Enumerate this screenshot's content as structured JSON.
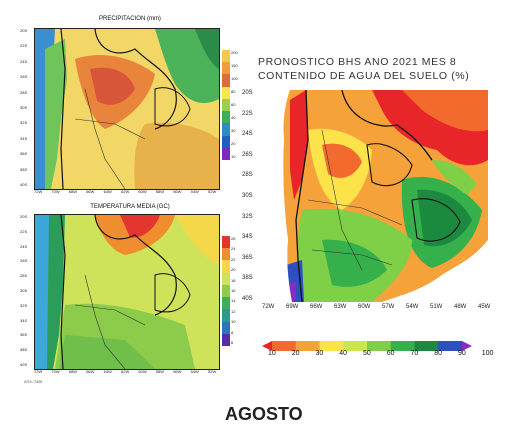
{
  "precip_map": {
    "title": "PRECIPITACION (mm)",
    "lat_ticks": [
      "20S",
      "22S",
      "24S",
      "26S",
      "28S",
      "30S",
      "32S",
      "34S",
      "36S",
      "38S",
      "40S"
    ],
    "lon_ticks": [
      "72W",
      "70W",
      "68W",
      "66W",
      "64W",
      "62W",
      "60W",
      "58W",
      "56W",
      "54W",
      "52W"
    ],
    "colorbar": [
      "200",
      "150",
      "100",
      "80",
      "60",
      "40",
      "30",
      "20",
      "10"
    ],
    "colors": [
      "#f2c94c",
      "#ee9d3a",
      "#e16a3c",
      "#f6e84a",
      "#9bd14a",
      "#3fae5a",
      "#2b8cc4",
      "#1f5fbf",
      "#7a2bbf"
    ]
  },
  "temp_map": {
    "title": "TEMPERATURA MEDIA (GC)",
    "lat_ticks": [
      "20S",
      "22S",
      "24S",
      "26S",
      "28S",
      "30S",
      "32S",
      "34S",
      "36S",
      "38S",
      "40S"
    ],
    "lon_ticks": [
      "72W",
      "70W",
      "68W",
      "66W",
      "64W",
      "62W",
      "60W",
      "58W",
      "56W",
      "54W",
      "52W"
    ],
    "colorbar": [
      "26",
      "24",
      "22",
      "20",
      "18",
      "16",
      "14",
      "12",
      "10",
      "8",
      "6"
    ],
    "colors": [
      "#e2362f",
      "#ef8d2f",
      "#f5d84a",
      "#cfe35a",
      "#8ccc4a",
      "#3fae5a",
      "#2b9c8c",
      "#2a74c0",
      "#5b2aa8"
    ]
  },
  "soil_map": {
    "title_line1": "PRONOSTICO BHS ANO 2021 MES 8",
    "title_line2": "CONTENIDO DE AGUA DEL SUELO (%)",
    "lat_ticks": [
      "20S",
      "22S",
      "24S",
      "26S",
      "28S",
      "30S",
      "32S",
      "34S",
      "36S",
      "38S",
      "40S"
    ],
    "lon_ticks": [
      "72W",
      "69W",
      "66W",
      "63W",
      "60W",
      "57W",
      "54W",
      "51W",
      "48W",
      "45W"
    ],
    "colorbar_values": [
      "10",
      "20",
      "30",
      "40",
      "50",
      "60",
      "70",
      "80",
      "90",
      "100"
    ],
    "colorbar_colors": [
      "#e8262a",
      "#f36a2f",
      "#f6a23a",
      "#fde34a",
      "#c9e64e",
      "#7fcf47",
      "#35b04b",
      "#1b8a3f",
      "#2e4fbf",
      "#8a2bbf"
    ]
  },
  "caption": "AGOSTO",
  "footnote": "INTA / SMN"
}
